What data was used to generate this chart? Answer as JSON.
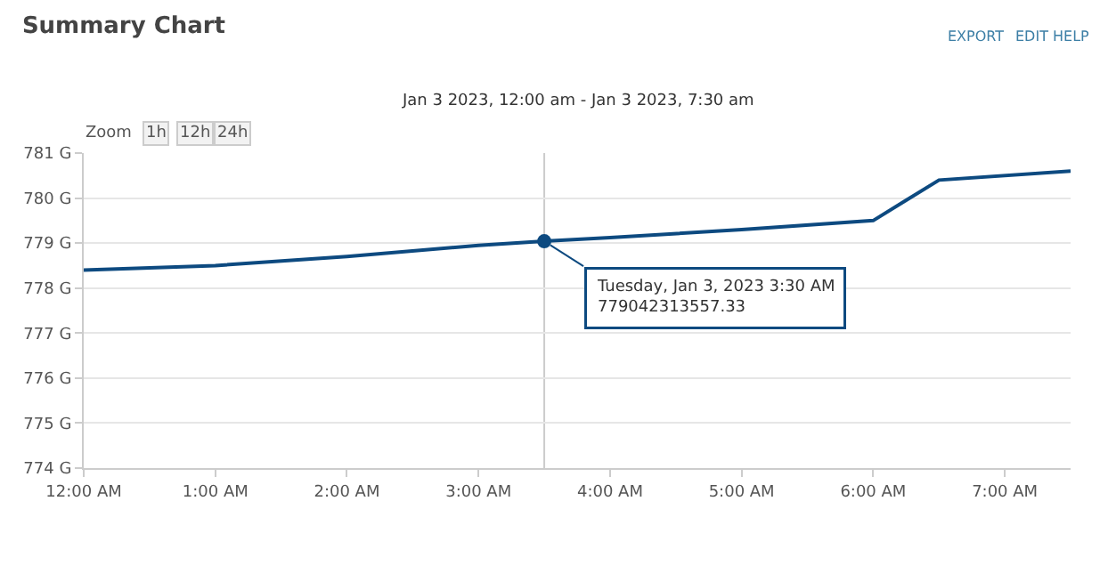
{
  "chart_data": {
    "type": "line",
    "title": "Summary Chart",
    "subtitle": "Jan 3 2023, 12:00 am - Jan 3 2023, 7:30 am",
    "x": [
      0,
      1,
      2,
      3,
      3.5,
      4,
      5,
      6,
      6.5,
      7.5
    ],
    "series": [
      {
        "color": "#0d4a80",
        "values": [
          778.4,
          778.5,
          778.7,
          778.95,
          779.04,
          779.12,
          779.3,
          779.5,
          780.4,
          780.6
        ]
      }
    ],
    "xlim": [
      0,
      7.5
    ],
    "xticks": [
      {
        "value": 0,
        "label": "12:00 AM"
      },
      {
        "value": 1,
        "label": "1:00 AM"
      },
      {
        "value": 2,
        "label": "2:00 AM"
      },
      {
        "value": 3,
        "label": "3:00 AM"
      },
      {
        "value": 4,
        "label": "4:00 AM"
      },
      {
        "value": 5,
        "label": "5:00 AM"
      },
      {
        "value": 6,
        "label": "6:00 AM"
      },
      {
        "value": 7,
        "label": "7:00 AM"
      }
    ],
    "ylim": [
      774,
      781
    ],
    "yticks": [
      {
        "value": 774,
        "label": "774 G"
      },
      {
        "value": 775,
        "label": "775 G"
      },
      {
        "value": 776,
        "label": "776 G"
      },
      {
        "value": 777,
        "label": "777 G"
      },
      {
        "value": 778,
        "label": "778 G"
      },
      {
        "value": 779,
        "label": "779 G"
      },
      {
        "value": 780,
        "label": "780 G"
      },
      {
        "value": 781,
        "label": "781 G"
      }
    ],
    "grid": "y",
    "marker": "none",
    "line_style": "solid",
    "ref_lines": [
      {
        "axis": "x",
        "value": 3.5,
        "color": "#cccccc"
      }
    ],
    "annotations": [
      {
        "text": "Tuesday, Jan 3, 2023 3:30 AM\n779042313557.33",
        "x": 3.5,
        "y": 779.04
      },
      "EXPORT",
      "EDIT",
      "HELP",
      "Zoom",
      "1h",
      "12h",
      "24h"
    ]
  }
}
